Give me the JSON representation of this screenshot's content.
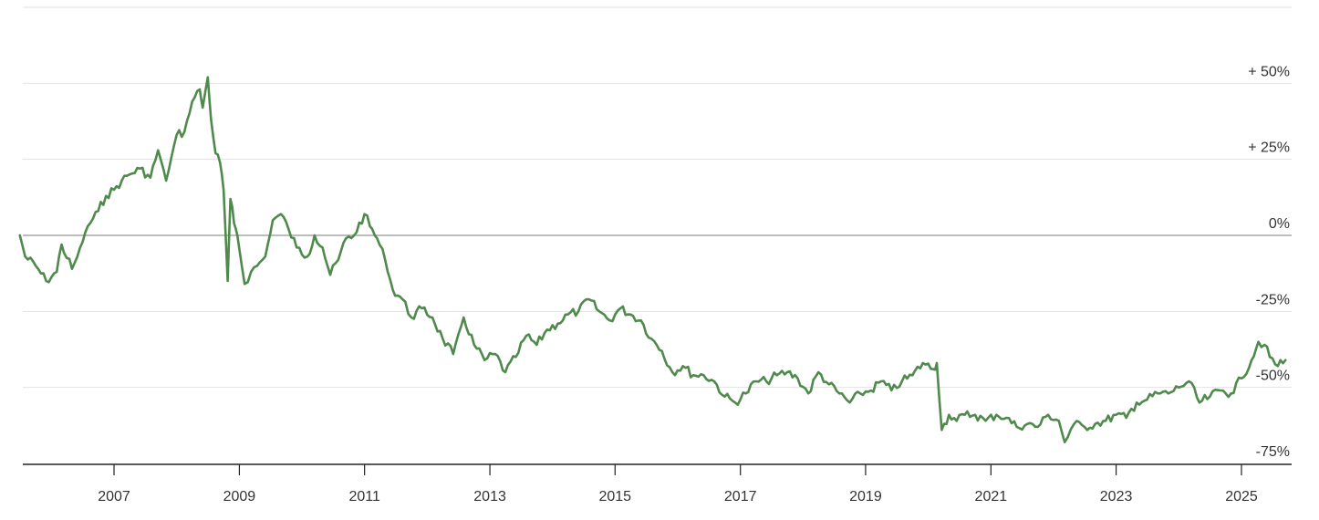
{
  "chart_data": {
    "type": "line",
    "title": "",
    "xlabel": "",
    "ylabel": "",
    "xlim": [
      "2005-07-01",
      "2025-09-15"
    ],
    "ylim": [
      -75,
      75
    ],
    "y_unit": "percent change",
    "y_ticks": [
      {
        "value": 50,
        "label": "+ 50%"
      },
      {
        "value": 25,
        "label": "+ 25%"
      },
      {
        "value": 0,
        "label": "0%"
      },
      {
        "value": -25,
        "label": "-25%"
      },
      {
        "value": -50,
        "label": "-50%"
      },
      {
        "value": -75,
        "label": "-75%"
      }
    ],
    "x_ticks": [
      {
        "value": "2007-01-01",
        "label": "2007"
      },
      {
        "value": "2009-01-01",
        "label": "2009"
      },
      {
        "value": "2011-01-01",
        "label": "2011"
      },
      {
        "value": "2013-01-01",
        "label": "2013"
      },
      {
        "value": "2015-01-01",
        "label": "2015"
      },
      {
        "value": "2017-01-01",
        "label": "2017"
      },
      {
        "value": "2019-01-01",
        "label": "2019"
      },
      {
        "value": "2021-01-01",
        "label": "2021"
      },
      {
        "value": "2023-01-01",
        "label": "2023"
      },
      {
        "value": "2025-01-01",
        "label": "2025"
      }
    ],
    "grid": true,
    "legend": "none",
    "series": [
      {
        "color": "#4f8a4c",
        "x": [
          "2005-07-01",
          "2005-08-01",
          "2005-10-01",
          "2005-12-01",
          "2006-02-01",
          "2006-03-01",
          "2006-05-01",
          "2006-06-01",
          "2006-08-01",
          "2006-10-01",
          "2006-11-15",
          "2007-01-01",
          "2007-02-15",
          "2007-04-01",
          "2007-06-01",
          "2007-08-01",
          "2007-09-15",
          "2007-11-01",
          "2008-01-01",
          "2008-02-15",
          "2008-04-01",
          "2008-05-15",
          "2008-06-01",
          "2008-07-01",
          "2008-07-20",
          "2008-08-15",
          "2008-09-10",
          "2008-10-01",
          "2008-10-25",
          "2008-11-10",
          "2008-12-01",
          "2008-12-20",
          "2009-02-01",
          "2009-03-10",
          "2009-04-15",
          "2009-06-01",
          "2009-07-15",
          "2009-09-01",
          "2009-10-15",
          "2009-12-01",
          "2010-02-01",
          "2010-03-15",
          "2010-05-01",
          "2010-06-15",
          "2010-08-01",
          "2010-09-15",
          "2010-11-01",
          "2011-01-01",
          "2011-02-01",
          "2011-03-15",
          "2011-05-01",
          "2011-06-15",
          "2011-08-10",
          "2011-10-01",
          "2011-12-01",
          "2012-02-01",
          "2012-04-01",
          "2012-06-01",
          "2012-08-01",
          "2012-10-01",
          "2012-12-01",
          "2013-02-01",
          "2013-04-01",
          "2013-06-01",
          "2013-08-01",
          "2013-10-01",
          "2013-12-01",
          "2014-02-01",
          "2014-04-01",
          "2014-06-01",
          "2014-08-01",
          "2014-10-01",
          "2014-12-01",
          "2015-02-01",
          "2015-04-01",
          "2015-06-01",
          "2015-08-01",
          "2015-10-01",
          "2015-12-01",
          "2016-02-01",
          "2016-04-01",
          "2016-06-01",
          "2016-08-01",
          "2016-10-01",
          "2016-12-01",
          "2017-02-01",
          "2017-04-01",
          "2017-06-01",
          "2017-08-01",
          "2017-10-01",
          "2017-12-01",
          "2018-02-01",
          "2018-04-01",
          "2018-06-01",
          "2018-08-01",
          "2018-10-01",
          "2018-12-01",
          "2019-02-01",
          "2019-04-01",
          "2019-06-01",
          "2019-08-01",
          "2019-10-01",
          "2019-12-01",
          "2020-02-01",
          "2020-02-20",
          "2020-03-20",
          "2020-05-01",
          "2020-06-15",
          "2020-08-01",
          "2020-10-01",
          "2020-12-01",
          "2021-02-01",
          "2021-04-01",
          "2021-06-01",
          "2021-08-01",
          "2021-10-01",
          "2021-12-01",
          "2022-02-01",
          "2022-03-07",
          "2022-05-01",
          "2022-07-01",
          "2022-09-01",
          "2022-11-01",
          "2023-01-01",
          "2023-03-01",
          "2023-05-01",
          "2023-07-01",
          "2023-09-01",
          "2023-11-01",
          "2024-01-01",
          "2024-03-01",
          "2024-05-01",
          "2024-07-01",
          "2024-09-01",
          "2024-11-01",
          "2025-01-01",
          "2025-03-01",
          "2025-04-10",
          "2025-05-15",
          "2025-06-15",
          "2025-08-01",
          "2025-09-15"
        ],
        "y": [
          0,
          -7,
          -10,
          -15,
          -12,
          -3,
          -11,
          -7,
          3,
          8,
          13,
          15,
          18,
          20,
          22,
          19,
          28,
          18,
          33,
          34,
          44,
          48,
          42,
          52,
          38,
          27,
          24,
          15,
          -15,
          12,
          4,
          0,
          -16,
          -12,
          -10,
          -7,
          5,
          7,
          2,
          -4,
          -7,
          0,
          -4,
          -13,
          -8,
          -1,
          0,
          7,
          3,
          -1,
          -8,
          -18,
          -21,
          -27,
          -24,
          -27,
          -34,
          -39,
          -27,
          -36,
          -41,
          -39,
          -45,
          -40,
          -33,
          -36,
          -31,
          -29,
          -26,
          -25,
          -21,
          -25,
          -28,
          -24,
          -26,
          -28,
          -34,
          -38,
          -45,
          -43,
          -46,
          -46,
          -48,
          -53,
          -55,
          -52,
          -48,
          -48,
          -46,
          -45,
          -47,
          -52,
          -45,
          -49,
          -52,
          -55,
          -52,
          -51,
          -48,
          -51,
          -48,
          -46,
          -42,
          -44,
          -42,
          -64,
          -59,
          -61,
          -59,
          -59,
          -61,
          -59,
          -60,
          -63,
          -62,
          -63,
          -59,
          -61,
          -68,
          -62,
          -63,
          -62,
          -61,
          -59,
          -60,
          -55,
          -54,
          -52,
          -52,
          -50,
          -48,
          -55,
          -53,
          -51,
          -52,
          -47,
          -41,
          -35,
          -36,
          -40,
          -43,
          -41
        ]
      }
    ]
  }
}
